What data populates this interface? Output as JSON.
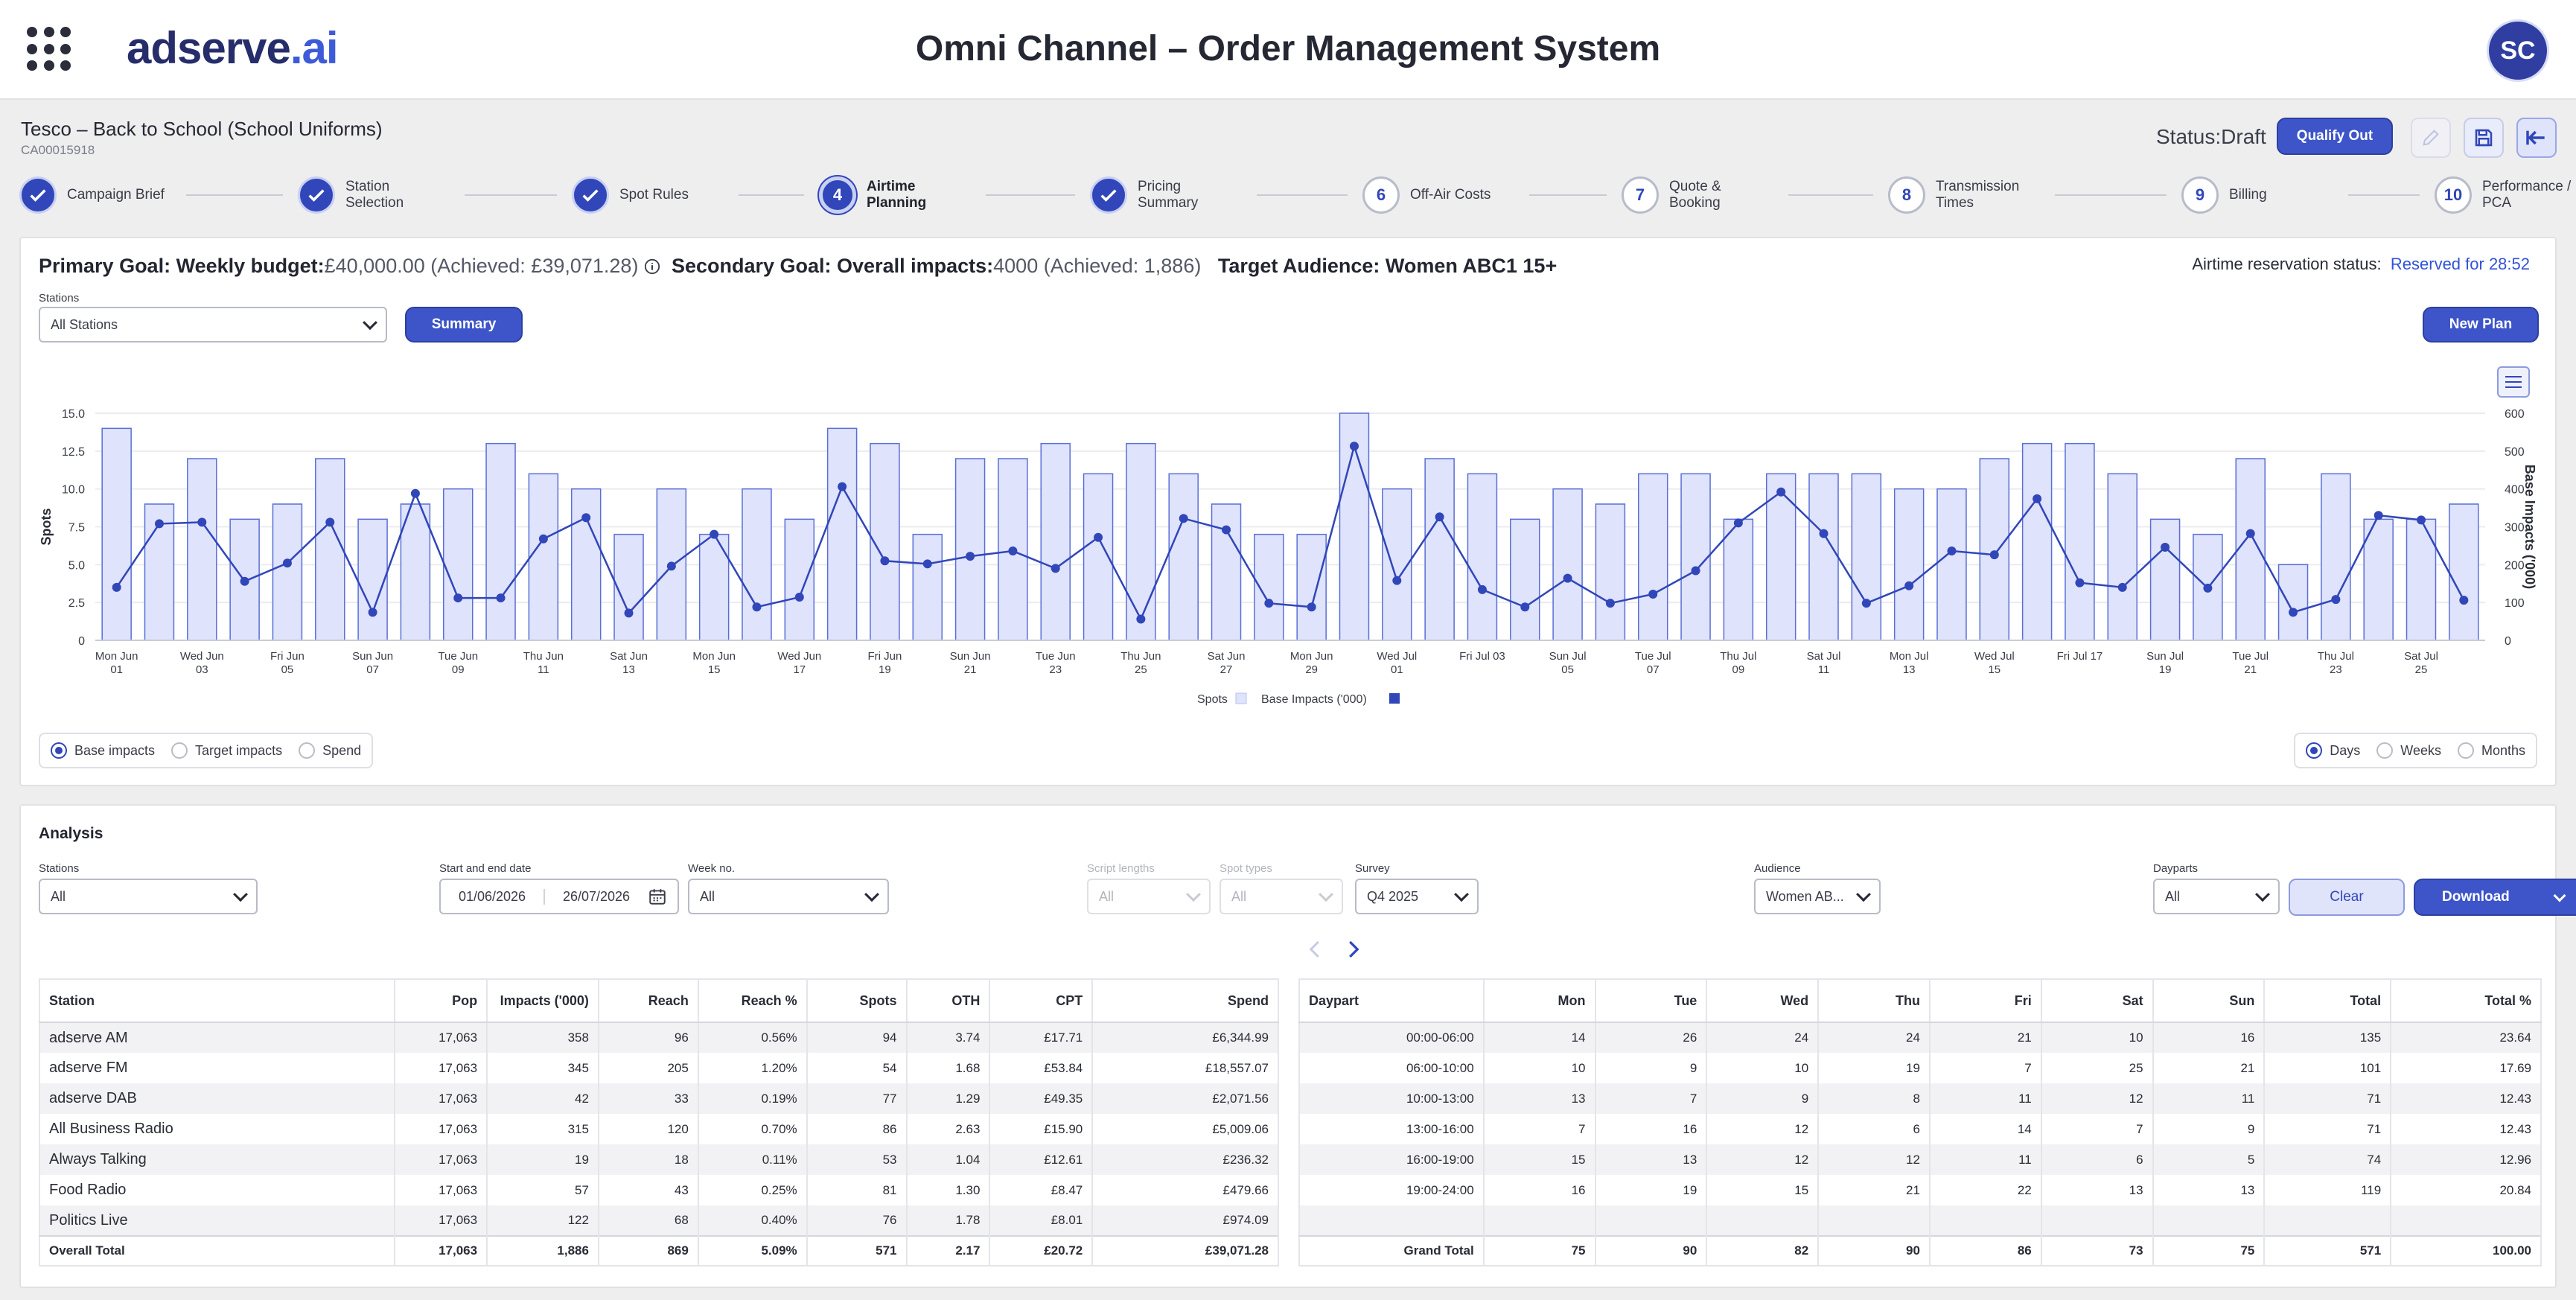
{
  "header": {
    "logo_main": "adserve",
    "logo_tld": ".ai",
    "title": "Omni Channel – Order Management System",
    "avatar_initials": "SC"
  },
  "campaign": {
    "name": "Tesco – Back to School (School Uniforms)",
    "id": "CA00015918",
    "status": "Status:Draft",
    "qualify_label": "Qualify Out"
  },
  "steps": [
    {
      "num": "",
      "label": "Campaign Brief",
      "state": "done"
    },
    {
      "num": "",
      "label": "Station Selection",
      "state": "done"
    },
    {
      "num": "",
      "label": "Spot Rules",
      "state": "done"
    },
    {
      "num": "4",
      "label": "Airtime Planning",
      "state": "active"
    },
    {
      "num": "",
      "label": "Pricing Summary",
      "state": "done"
    },
    {
      "num": "6",
      "label": "Off-Air Costs",
      "state": "todo"
    },
    {
      "num": "7",
      "label": "Quote & Booking",
      "state": "todo"
    },
    {
      "num": "8",
      "label": "Transmission Times",
      "state": "todo"
    },
    {
      "num": "9",
      "label": "Billing",
      "state": "todo"
    },
    {
      "num": "10",
      "label": "Performance / PCA",
      "state": "todo"
    }
  ],
  "goals": {
    "primary_label": "Primary Goal: Weekly budget:",
    "primary_value": "£40,000.00 (Achieved: £39,071.28)",
    "secondary_label": "Secondary Goal: Overall impacts:",
    "secondary_value": "4000 (Achieved: 1,886)",
    "audience": "Target Audience: Women ABC1 15+",
    "reservation_label": "Airtime reservation status:",
    "reservation_value": "Reserved for 28:52"
  },
  "controls": {
    "stations_label": "Stations",
    "stations_value": "All Stations",
    "summary_label": "Summary",
    "new_plan_label": "New Plan"
  },
  "chart_data": {
    "type": "bar",
    "y_left_label": "Spots",
    "y_right_label": "Base Impacts ('000)",
    "y_left_ticks": [
      "0",
      "2.5",
      "5.0",
      "7.5",
      "10.0",
      "12.5",
      "15.0"
    ],
    "y_right_ticks": [
      "0",
      "100",
      "200",
      "300",
      "400",
      "500",
      "600"
    ],
    "ylim_left": [
      0,
      15
    ],
    "ylim_right": [
      0,
      600
    ],
    "x_tick_labels": [
      [
        "Mon Jun",
        "01"
      ],
      [
        "Wed Jun",
        "03"
      ],
      [
        "Fri Jun",
        "05"
      ],
      [
        "Sun Jun",
        "07"
      ],
      [
        "Tue Jun",
        "09"
      ],
      [
        "Thu Jun",
        "11"
      ],
      [
        "Sat Jun",
        "13"
      ],
      [
        "Mon Jun",
        "15"
      ],
      [
        "Wed Jun",
        "17"
      ],
      [
        "Fri Jun",
        "19"
      ],
      [
        "Sun Jun",
        "21"
      ],
      [
        "Tue Jun",
        "23"
      ],
      [
        "Thu Jun",
        "25"
      ],
      [
        "Sat Jun",
        "27"
      ],
      [
        "Mon Jun",
        "29"
      ],
      [
        "Wed Jul",
        "01"
      ],
      [
        "Fri Jul 03",
        ""
      ],
      [
        "Sun Jul",
        "05"
      ],
      [
        "Tue Jul",
        "07"
      ],
      [
        "Thu Jul",
        "09"
      ],
      [
        "Sat Jul",
        "11"
      ],
      [
        "Mon Jul",
        "13"
      ],
      [
        "Wed Jul",
        "15"
      ],
      [
        "Fri Jul 17",
        ""
      ],
      [
        "Sun Jul",
        "19"
      ],
      [
        "Tue Jul",
        "21"
      ],
      [
        "Thu Jul",
        "23"
      ],
      [
        "Sat Jul",
        "25"
      ]
    ],
    "series": [
      {
        "name": "Spots",
        "type": "bar",
        "axis": "left",
        "values": [
          14,
          9,
          12,
          8,
          9,
          12,
          8,
          9,
          10,
          13,
          11,
          10,
          7,
          10,
          7,
          10,
          8,
          14,
          13,
          7,
          12,
          12,
          13,
          11,
          13,
          11,
          9,
          7,
          7,
          15,
          10,
          12,
          11,
          8,
          10,
          9,
          11,
          11,
          8,
          11,
          11,
          11,
          10,
          10,
          12,
          13,
          13,
          11,
          8,
          7,
          12,
          5,
          11,
          8,
          8,
          9
        ]
      },
      {
        "name": "Base Impacts ('000)",
        "type": "line",
        "axis": "right",
        "values": [
          140,
          308,
          312,
          156,
          204,
          312,
          74,
          388,
          112,
          112,
          268,
          324,
          72,
          196,
          280,
          88,
          114,
          406,
          210,
          202,
          222,
          236,
          190,
          272,
          56,
          322,
          292,
          98,
          88,
          513,
          158,
          326,
          134,
          88,
          164,
          98,
          122,
          184,
          310,
          392,
          282,
          98,
          144,
          236,
          226,
          374,
          152,
          140,
          246,
          138,
          282,
          74,
          108,
          330,
          318,
          106
        ]
      }
    ],
    "legend": "bottom"
  },
  "chart_options": {
    "metric": [
      {
        "label": "Base impacts",
        "selected": true
      },
      {
        "label": "Target impacts",
        "selected": false
      },
      {
        "label": "Spend",
        "selected": false
      }
    ],
    "period": [
      {
        "label": "Days",
        "selected": true
      },
      {
        "label": "Weeks",
        "selected": false
      },
      {
        "label": "Months",
        "selected": false
      }
    ]
  },
  "analysis": {
    "title": "Analysis",
    "filters": {
      "stations_label": "Stations",
      "stations_value": "All",
      "date_label": "Start and end date",
      "start_date": "01/06/2026",
      "end_date": "26/07/2026",
      "week_label": "Week no.",
      "week_value": "All",
      "script_label": "Script lengths",
      "script_value": "All",
      "spot_label": "Spot types",
      "spot_value": "All",
      "survey_label": "Survey",
      "survey_value": "Q4 2025",
      "audience_label": "Audience",
      "audience_value": "Women AB...",
      "dayparts_label": "Dayparts",
      "dayparts_value": "All",
      "clear_label": "Clear",
      "download_label": "Download"
    },
    "station_table": {
      "headers": [
        "Station",
        "Pop",
        "Impacts ('000)",
        "Reach",
        "Reach %",
        "Spots",
        "OTH",
        "CPT",
        "Spend"
      ],
      "rows": [
        [
          "adserve AM",
          "17,063",
          "358",
          "96",
          "0.56%",
          "94",
          "3.74",
          "£17.71",
          "£6,344.99"
        ],
        [
          "adserve FM",
          "17,063",
          "345",
          "205",
          "1.20%",
          "54",
          "1.68",
          "£53.84",
          "£18,557.07"
        ],
        [
          "adserve DAB",
          "17,063",
          "42",
          "33",
          "0.19%",
          "77",
          "1.29",
          "£49.35",
          "£2,071.56"
        ],
        [
          "All Business Radio",
          "17,063",
          "315",
          "120",
          "0.70%",
          "86",
          "2.63",
          "£15.90",
          "£5,009.06"
        ],
        [
          "Always Talking",
          "17,063",
          "19",
          "18",
          "0.11%",
          "53",
          "1.04",
          "£12.61",
          "£236.32"
        ],
        [
          "Food Radio",
          "17,063",
          "57",
          "43",
          "0.25%",
          "81",
          "1.30",
          "£8.47",
          "£479.66"
        ],
        [
          "Politics Live",
          "17,063",
          "122",
          "68",
          "0.40%",
          "76",
          "1.78",
          "£8.01",
          "£974.09"
        ]
      ],
      "total": [
        "Overall Total",
        "17,063",
        "1,886",
        "869",
        "5.09%",
        "571",
        "2.17",
        "£20.72",
        "£39,071.28"
      ]
    },
    "daypart_table": {
      "headers": [
        "Daypart",
        "Mon",
        "Tue",
        "Wed",
        "Thu",
        "Fri",
        "Sat",
        "Sun",
        "Total",
        "Total %"
      ],
      "rows": [
        [
          "00:00-06:00",
          "14",
          "26",
          "24",
          "24",
          "21",
          "10",
          "16",
          "135",
          "23.64"
        ],
        [
          "06:00-10:00",
          "10",
          "9",
          "10",
          "19",
          "7",
          "25",
          "21",
          "101",
          "17.69"
        ],
        [
          "10:00-13:00",
          "13",
          "7",
          "9",
          "8",
          "11",
          "12",
          "11",
          "71",
          "12.43"
        ],
        [
          "13:00-16:00",
          "7",
          "16",
          "12",
          "6",
          "14",
          "7",
          "9",
          "71",
          "12.43"
        ],
        [
          "16:00-19:00",
          "15",
          "13",
          "12",
          "12",
          "11",
          "6",
          "5",
          "74",
          "12.96"
        ],
        [
          "19:00-24:00",
          "16",
          "19",
          "15",
          "21",
          "22",
          "13",
          "13",
          "119",
          "20.84"
        ],
        [
          "",
          "",
          "",
          "",
          "",
          "",
          "",
          "",
          "",
          ""
        ]
      ],
      "total": [
        "Grand Total",
        "75",
        "90",
        "82",
        "90",
        "86",
        "73",
        "75",
        "571",
        "100.00"
      ]
    }
  },
  "colors": {
    "accent": "#3146b8",
    "bar_fill": "#dfe3fb",
    "bar_stroke": "#5a6fd6",
    "line": "#3146b8"
  }
}
